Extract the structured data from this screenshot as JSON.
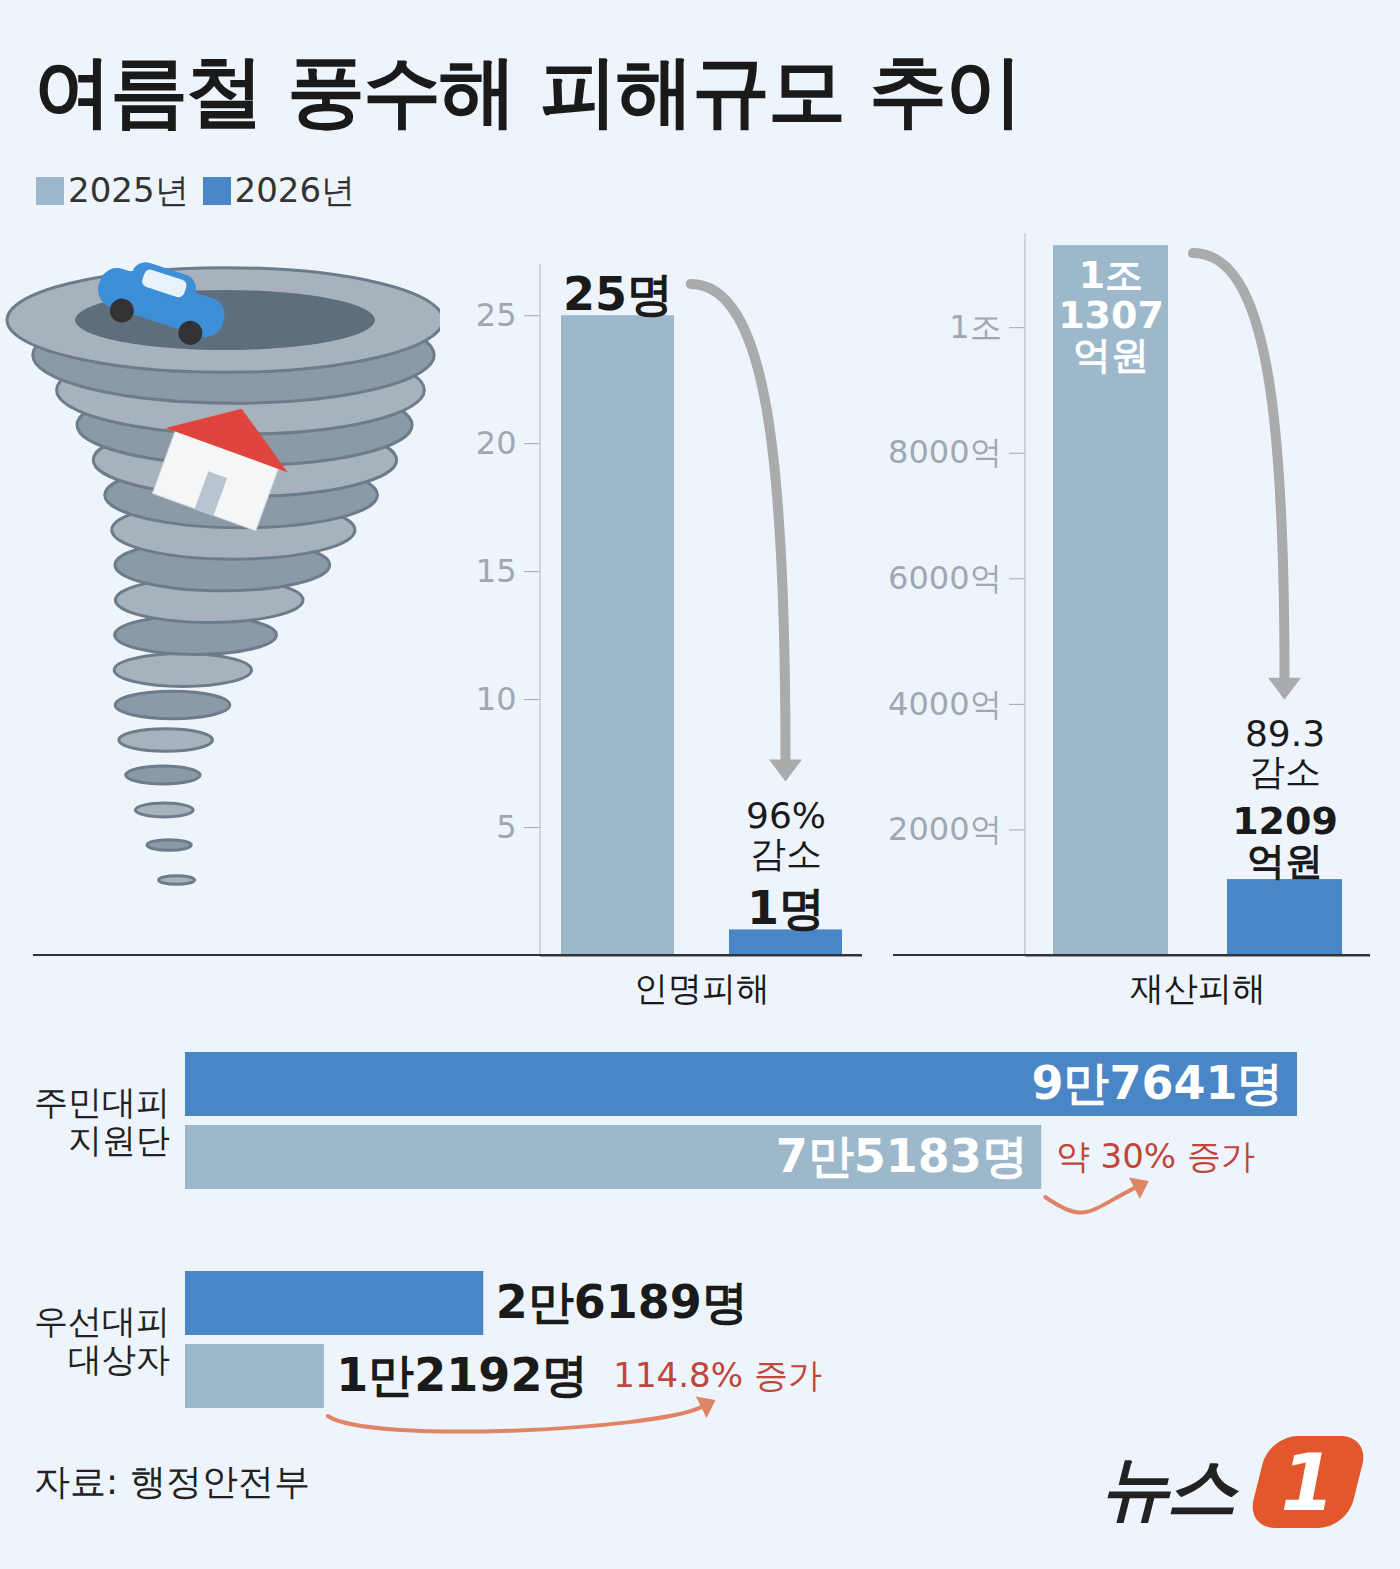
{
  "title": "여름철 풍수해 피해규모 추이",
  "source": "자료: 행정안전부",
  "logo": {
    "text": "뉴스",
    "mark": "1"
  },
  "chart_data": [
    {
      "type": "bar",
      "categories": [
        "인명피해"
      ],
      "series": [
        {
          "name": "2025년",
          "color": "#9db8cb",
          "values": [
            25
          ],
          "value_labels": [
            "25명"
          ]
        },
        {
          "name": "2026년",
          "color": "#4a86c5",
          "values": [
            1
          ],
          "value_labels": [
            "1명"
          ]
        }
      ],
      "ylim": [
        0,
        27
      ],
      "yticks": [
        5,
        10,
        15,
        20,
        25
      ],
      "grid": false,
      "legend": "top-left",
      "data_labels": true,
      "annotations": [
        "96% 감소"
      ]
    },
    {
      "type": "bar",
      "categories": [
        "재산피해"
      ],
      "series": [
        {
          "name": "2025년",
          "color": "#9db8cb",
          "values": [
            11307
          ],
          "value_labels": [
            "1조 1307억원"
          ]
        },
        {
          "name": "2026년",
          "color": "#4a86c5",
          "values": [
            1209
          ],
          "value_labels": [
            "1209억원"
          ]
        }
      ],
      "ylim": [
        0,
        11500
      ],
      "yticks": [
        {
          "value": 2000,
          "label": "2000억"
        },
        {
          "value": 4000,
          "label": "4000억"
        },
        {
          "value": 6000,
          "label": "6000억"
        },
        {
          "value": 8000,
          "label": "8000억"
        },
        {
          "value": 10000,
          "label": "1조"
        }
      ],
      "grid": false,
      "legend": "top-left",
      "data_labels": true,
      "annotations": [
        "89.3 감소"
      ]
    },
    {
      "type": "bar",
      "orientation": "horizontal",
      "categories": [
        "주민대피 지원단",
        "우선대피 대상자"
      ],
      "series": [
        {
          "name": "2025년",
          "color": "#9db8cb",
          "values": [
            75183,
            12192
          ],
          "value_labels": [
            "7만5183명",
            "1만2192명"
          ]
        },
        {
          "name": "2026년",
          "color": "#4a86c5",
          "values": [
            97641,
            26189
          ],
          "value_labels": [
            "9만7641명",
            "2만6189명"
          ]
        }
      ],
      "xlim": [
        0,
        97641
      ],
      "tick_labels": "y",
      "grid": false,
      "legend": "top-left",
      "data_labels": true,
      "annotations": [
        "약 30% 증가",
        "114.8% 증가"
      ]
    }
  ]
}
